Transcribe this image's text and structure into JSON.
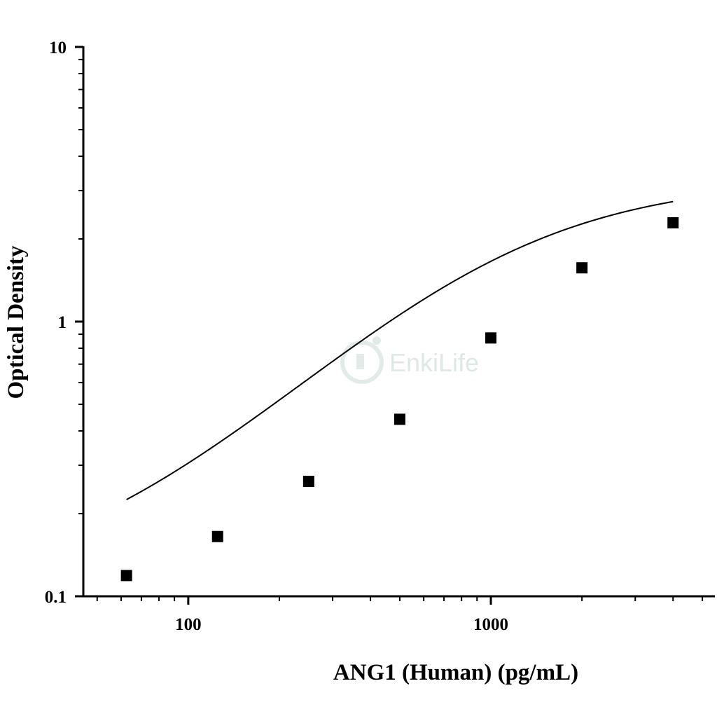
{
  "chart_data": {
    "type": "scatter",
    "title": "",
    "xlabel": "ANG1 (Human) (pg/mL)",
    "ylabel": "Optical Density",
    "x_scale": "log",
    "y_scale": "log",
    "xlim": [
      45,
      5500
    ],
    "ylim": [
      0.1,
      10
    ],
    "x_tick_labels": [
      "100",
      "1000"
    ],
    "y_tick_labels": [
      "0.1",
      "1",
      "10"
    ],
    "grid": false,
    "legend": "none",
    "series": [
      {
        "marker": "square",
        "color": "#000000",
        "x": [
          62.5,
          125,
          250,
          500,
          1000,
          2000,
          4000
        ],
        "y": [
          0.119,
          0.165,
          0.262,
          0.441,
          0.872,
          1.57,
          2.29
        ]
      }
    ],
    "fit_curve": {
      "type": "four-parameter logistic",
      "color": "#000000",
      "x_range": [
        62.5,
        4000
      ],
      "params": {
        "A": 0.105,
        "D": 3.3,
        "C": 1050,
        "B": 1.15
      }
    }
  },
  "watermark": {
    "text": "EnkiLife",
    "color": "#dfe8e6"
  }
}
